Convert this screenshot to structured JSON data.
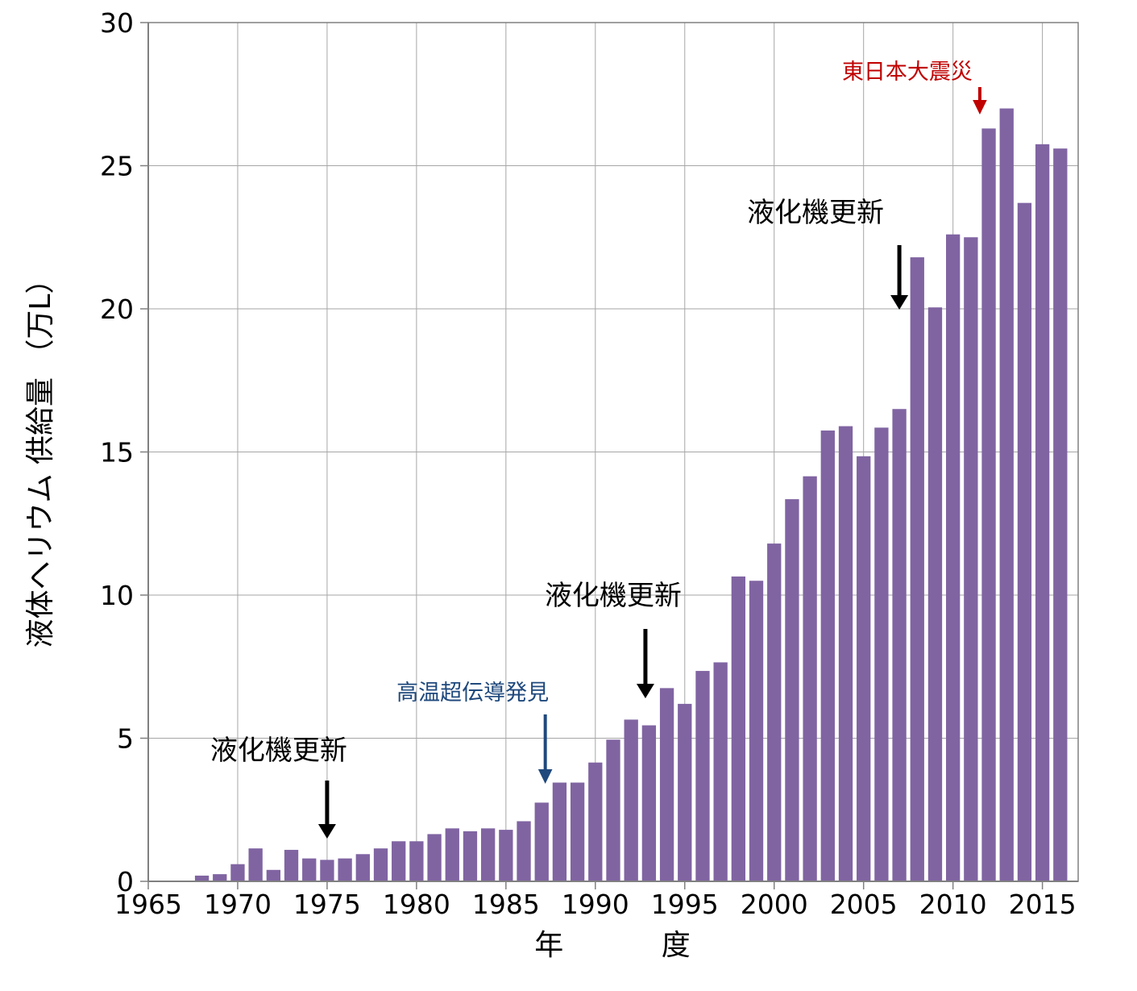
{
  "chart_data": {
    "type": "bar",
    "ylabel": "液体ヘリウム 供給量 （万L）",
    "xlabel": "年 度",
    "xlim": [
      1965,
      2017
    ],
    "ylim": [
      0,
      30
    ],
    "xticks": [
      1965,
      1970,
      1975,
      1980,
      1985,
      1990,
      1995,
      2000,
      2005,
      2010,
      2015
    ],
    "yticks": [
      0,
      5,
      10,
      15,
      20,
      25,
      30
    ],
    "grid": true,
    "bar_color": "#8064A2",
    "x": [
      1968,
      1969,
      1970,
      1971,
      1972,
      1973,
      1974,
      1975,
      1976,
      1977,
      1978,
      1979,
      1980,
      1981,
      1982,
      1983,
      1984,
      1985,
      1986,
      1987,
      1988,
      1989,
      1990,
      1991,
      1992,
      1993,
      1994,
      1995,
      1996,
      1997,
      1998,
      1999,
      2000,
      2001,
      2002,
      2003,
      2004,
      2005,
      2006,
      2007,
      2008,
      2009,
      2010,
      2011,
      2012,
      2013,
      2014,
      2015,
      2016
    ],
    "values": [
      0.2,
      0.25,
      0.6,
      1.15,
      0.4,
      1.1,
      0.8,
      0.75,
      0.8,
      0.95,
      1.15,
      1.4,
      1.4,
      1.65,
      1.85,
      1.75,
      1.85,
      1.8,
      2.1,
      2.75,
      3.45,
      3.45,
      4.15,
      4.95,
      5.65,
      5.45,
      6.75,
      6.2,
      7.35,
      7.65,
      10.65,
      10.5,
      11.8,
      13.35,
      14.15,
      15.75,
      15.9,
      14.85,
      15.85,
      16.5,
      21.8,
      20.05,
      22.6,
      22.5,
      26.3,
      27.0,
      23.7,
      25.75,
      25.6
    ],
    "annotations": [
      {
        "text": "液化機更新",
        "x": 1975,
        "color": "#000000"
      },
      {
        "text": "高温超伝導発見",
        "x": 1987.2,
        "color": "#1F497D"
      },
      {
        "text": "液化機更新",
        "x": 1992.8,
        "color": "#000000"
      },
      {
        "text": "液化機更新",
        "x": 2007,
        "color": "#000000"
      },
      {
        "text": "東日本大震災",
        "x": 2011.5,
        "color": "#C00000"
      }
    ]
  }
}
